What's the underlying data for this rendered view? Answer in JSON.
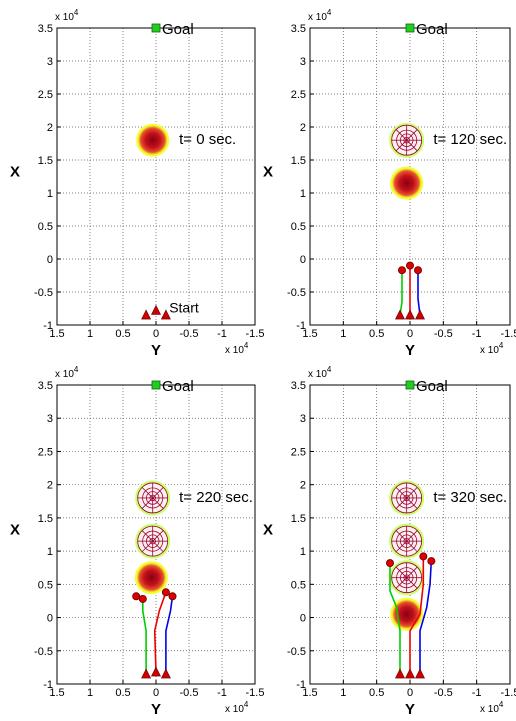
{
  "figure": {
    "xaxis_label": "Y",
    "yaxis_label": "X",
    "x_exponent": "x 10",
    "y_exponent": "x 10",
    "exponent_power": "4",
    "x_ticks": [
      1.5,
      1,
      0.5,
      0,
      -0.5,
      -1,
      -1.5
    ],
    "x_tick_labels": [
      "1.5",
      "1",
      "0.5",
      "0",
      "-0.5",
      "-1",
      "-1.5"
    ],
    "y_ticks": [
      -1,
      -0.5,
      0,
      0.5,
      1,
      1.5,
      2,
      2.5,
      3,
      3.5
    ],
    "y_tick_labels": [
      "-1",
      "-0.5",
      "0",
      "0.5",
      "1",
      "1.5",
      "2",
      "2.5",
      "3",
      "3.5"
    ],
    "xlim": [
      1.5,
      -1.5
    ],
    "ylim": [
      -1,
      3.5
    ],
    "goal_label": "Goal",
    "start_label": "Start",
    "colors": {
      "goal": "#22cc22",
      "green_path": "#00cc00",
      "red_path": "#ee0000",
      "blue_path": "#0000ee",
      "robot": "#dd0000",
      "base_marker": "#cc0000",
      "obstacle_core": "#a80010",
      "obstacle_edge": "#f4ff2a",
      "web": "#990033"
    }
  },
  "chart_data": [
    {
      "type": "scatter",
      "panel_label": "t= 0 sec.",
      "goal": [
        0,
        3.5
      ],
      "start_markers": [
        [
          0.15,
          -0.85
        ],
        [
          0,
          -0.78
        ],
        [
          -0.15,
          -0.85
        ]
      ],
      "obstacles": [
        [
          0.05,
          1.8,
          "solid"
        ]
      ],
      "robots": [],
      "paths": []
    },
    {
      "type": "line",
      "panel_label": "t= 120 sec.",
      "goal": [
        0,
        3.5
      ],
      "start_markers": [
        [
          0.15,
          -0.85
        ],
        [
          0,
          -0.85
        ],
        [
          -0.15,
          -0.85
        ]
      ],
      "obstacles": [
        [
          0.05,
          1.8,
          "web"
        ],
        [
          0.05,
          1.15,
          "solid"
        ]
      ],
      "robots": [
        [
          0.12,
          -0.17
        ],
        [
          0,
          -0.1
        ],
        [
          -0.12,
          -0.17
        ]
      ],
      "paths": [
        {
          "color": "green",
          "points": [
            [
              0.15,
              -0.85
            ],
            [
              0.12,
              -0.65
            ],
            [
              0.12,
              -0.17
            ]
          ]
        },
        {
          "color": "red",
          "points": [
            [
              0,
              -0.85
            ],
            [
              0,
              -0.1
            ]
          ]
        },
        {
          "color": "blue",
          "points": [
            [
              -0.15,
              -0.85
            ],
            [
              -0.12,
              -0.6
            ],
            [
              -0.12,
              -0.17
            ]
          ]
        }
      ]
    },
    {
      "type": "line",
      "panel_label": "t= 220 sec.",
      "goal": [
        0,
        3.5
      ],
      "start_markers": [
        [
          0.15,
          -0.85
        ],
        [
          0,
          -0.82
        ],
        [
          -0.15,
          -0.85
        ]
      ],
      "obstacles": [
        [
          0.05,
          1.8,
          "web"
        ],
        [
          0.05,
          1.15,
          "web"
        ],
        [
          0.07,
          0.6,
          "solid"
        ]
      ],
      "robots": [
        [
          0.3,
          0.32
        ],
        [
          0.2,
          0.28
        ],
        [
          -0.15,
          0.38
        ],
        [
          -0.25,
          0.32
        ]
      ],
      "paths": [
        {
          "color": "green",
          "points": [
            [
              0.15,
              -0.85
            ],
            [
              0.15,
              -0.2
            ],
            [
              0.2,
              0.1
            ],
            [
              0.2,
              0.28
            ]
          ]
        },
        {
          "color": "red",
          "points": [
            [
              0,
              -0.82
            ],
            [
              0.02,
              -0.2
            ],
            [
              -0.05,
              0.1
            ],
            [
              -0.15,
              0.38
            ]
          ]
        },
        {
          "color": "blue",
          "points": [
            [
              -0.15,
              -0.85
            ],
            [
              -0.15,
              -0.2
            ],
            [
              -0.22,
              0.1
            ],
            [
              -0.25,
              0.32
            ]
          ]
        }
      ]
    },
    {
      "type": "line",
      "panel_label": "t= 320 sec.",
      "goal": [
        0,
        3.5
      ],
      "start_markers": [
        [
          0.15,
          -0.85
        ],
        [
          0,
          -0.85
        ],
        [
          -0.15,
          -0.85
        ]
      ],
      "obstacles": [
        [
          0.05,
          1.8,
          "web"
        ],
        [
          0.05,
          1.15,
          "web"
        ],
        [
          0.05,
          0.6,
          "web"
        ],
        [
          0.05,
          0.05,
          "solid"
        ]
      ],
      "robots": [
        [
          0.3,
          0.82
        ],
        [
          -0.2,
          0.92
        ],
        [
          -0.32,
          0.85
        ]
      ],
      "paths": [
        {
          "color": "green",
          "points": [
            [
              0.15,
              -0.85
            ],
            [
              0.15,
              -0.2
            ],
            [
              0.2,
              0.15
            ],
            [
              0.3,
              0.4
            ],
            [
              0.3,
              0.82
            ]
          ]
        },
        {
          "color": "red",
          "points": [
            [
              0,
              -0.85
            ],
            [
              0,
              -0.2
            ],
            [
              -0.15,
              0.05
            ],
            [
              -0.2,
              0.5
            ],
            [
              -0.2,
              0.92
            ]
          ]
        },
        {
          "color": "blue",
          "points": [
            [
              -0.15,
              -0.85
            ],
            [
              -0.15,
              -0.2
            ],
            [
              -0.25,
              0.15
            ],
            [
              -0.3,
              0.5
            ],
            [
              -0.32,
              0.85
            ]
          ]
        }
      ]
    }
  ]
}
